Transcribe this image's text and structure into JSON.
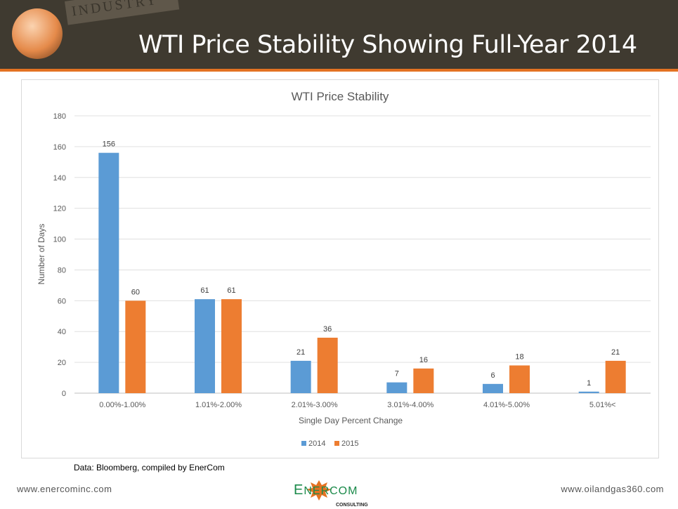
{
  "header": {
    "title": "WTI Price Stability Showing Full-Year 2014",
    "banner_text": "INDUSTRY"
  },
  "colors": {
    "header_bg": "#3f3a30",
    "accent": "#e37222",
    "series_2014": "#5b9bd5",
    "series_2015": "#ed7d31"
  },
  "chart_data": {
    "type": "bar",
    "title": "WTI Price Stability",
    "xlabel": "Single Day Percent Change",
    "ylabel": "Number of Days",
    "categories": [
      "0.00%-1.00%",
      "1.01%-2.00%",
      "2.01%-3.00%",
      "3.01%-4.00%",
      "4.01%-5.00%",
      "5.01%<"
    ],
    "series": [
      {
        "name": "2014",
        "values": [
          156,
          61,
          21,
          7,
          6,
          1
        ]
      },
      {
        "name": "2015",
        "values": [
          60,
          61,
          36,
          16,
          18,
          21
        ]
      }
    ],
    "ylim": [
      0,
      180
    ],
    "yticks": [
      0,
      20,
      40,
      60,
      80,
      100,
      120,
      140,
      160,
      180
    ],
    "grid": true,
    "legend": "bottom",
    "data_labels": true
  },
  "source": "Data: Bloomberg, compiled by EnerCom",
  "footer": {
    "left": "www.enercominc.com",
    "right": "www.oilandgas360.com",
    "logo_text": "ENERCOM",
    "logo_sub": "CONSULTING"
  }
}
